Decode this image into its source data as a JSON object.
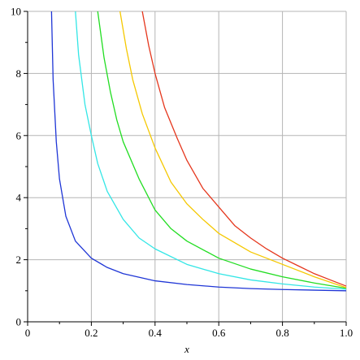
{
  "chart_data": {
    "type": "line",
    "xlabel": "x",
    "ylabel": "",
    "xlim": [
      0,
      1.0
    ],
    "ylim": [
      0,
      10
    ],
    "grid": true,
    "x_ticks": [
      "0",
      "0.2",
      "0.4",
      "0.6",
      "0.8",
      "1.0"
    ],
    "y_ticks": [
      "0",
      "2",
      "4",
      "6",
      "8",
      "10"
    ],
    "x_tick_values": [
      0,
      0.2,
      0.4,
      0.6,
      0.8,
      1.0
    ],
    "y_tick_values": [
      0,
      2,
      4,
      6,
      8,
      10
    ],
    "series": [
      {
        "color": "#1f36d6",
        "points": [
          [
            0.075,
            10.0
          ],
          [
            0.08,
            7.8
          ],
          [
            0.09,
            5.8
          ],
          [
            0.1,
            4.6
          ],
          [
            0.12,
            3.4
          ],
          [
            0.15,
            2.6
          ],
          [
            0.2,
            2.05
          ],
          [
            0.25,
            1.75
          ],
          [
            0.3,
            1.55
          ],
          [
            0.4,
            1.32
          ],
          [
            0.5,
            1.2
          ],
          [
            0.6,
            1.12
          ],
          [
            0.7,
            1.07
          ],
          [
            0.8,
            1.04
          ],
          [
            0.9,
            1.02
          ],
          [
            1.0,
            1.0
          ]
        ]
      },
      {
        "color": "#33e6e6",
        "points": [
          [
            0.15,
            10.0
          ],
          [
            0.16,
            8.6
          ],
          [
            0.18,
            7.0
          ],
          [
            0.2,
            6.0
          ],
          [
            0.22,
            5.1
          ],
          [
            0.25,
            4.2
          ],
          [
            0.3,
            3.3
          ],
          [
            0.35,
            2.7
          ],
          [
            0.4,
            2.35
          ],
          [
            0.5,
            1.85
          ],
          [
            0.6,
            1.55
          ],
          [
            0.7,
            1.35
          ],
          [
            0.8,
            1.22
          ],
          [
            0.9,
            1.12
          ],
          [
            1.0,
            1.05
          ]
        ]
      },
      {
        "color": "#22dd22",
        "points": [
          [
            0.22,
            10.0
          ],
          [
            0.24,
            8.5
          ],
          [
            0.26,
            7.4
          ],
          [
            0.28,
            6.5
          ],
          [
            0.3,
            5.8
          ],
          [
            0.35,
            4.6
          ],
          [
            0.4,
            3.6
          ],
          [
            0.45,
            3.0
          ],
          [
            0.5,
            2.6
          ],
          [
            0.6,
            2.05
          ],
          [
            0.7,
            1.7
          ],
          [
            0.8,
            1.45
          ],
          [
            0.9,
            1.25
          ],
          [
            1.0,
            1.08
          ]
        ]
      },
      {
        "color": "#f5c800",
        "points": [
          [
            0.29,
            10.0
          ],
          [
            0.31,
            8.8
          ],
          [
            0.33,
            7.8
          ],
          [
            0.36,
            6.7
          ],
          [
            0.4,
            5.6
          ],
          [
            0.45,
            4.5
          ],
          [
            0.5,
            3.8
          ],
          [
            0.55,
            3.3
          ],
          [
            0.6,
            2.85
          ],
          [
            0.7,
            2.25
          ],
          [
            0.8,
            1.85
          ],
          [
            0.9,
            1.45
          ],
          [
            1.0,
            1.1
          ]
        ]
      },
      {
        "color": "#e5361c",
        "points": [
          [
            0.36,
            10.0
          ],
          [
            0.38,
            8.9
          ],
          [
            0.4,
            8.0
          ],
          [
            0.43,
            6.9
          ],
          [
            0.47,
            5.9
          ],
          [
            0.5,
            5.2
          ],
          [
            0.55,
            4.3
          ],
          [
            0.6,
            3.7
          ],
          [
            0.65,
            3.1
          ],
          [
            0.7,
            2.7
          ],
          [
            0.75,
            2.35
          ],
          [
            0.8,
            2.05
          ],
          [
            0.85,
            1.8
          ],
          [
            0.9,
            1.55
          ],
          [
            0.95,
            1.35
          ],
          [
            1.0,
            1.15
          ]
        ]
      }
    ]
  }
}
